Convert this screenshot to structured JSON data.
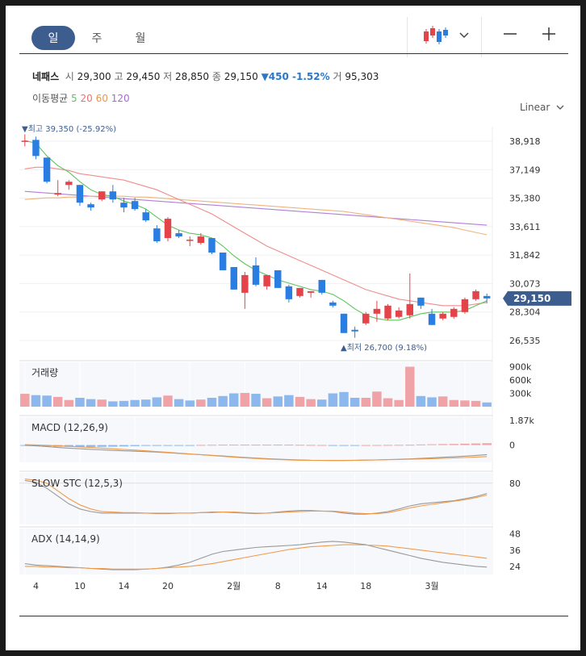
{
  "tabs": [
    "일",
    "주",
    "월"
  ],
  "stock": {
    "name": "네패스",
    "open_label": "시",
    "open": "29,300",
    "high_label": "고",
    "high": "29,450",
    "low_label": "저",
    "low": "28,850",
    "close_label": "종",
    "close": "29,150",
    "change": "▼450 -1.52%",
    "volume_label": "거",
    "volume": "95,303"
  },
  "ma": {
    "label": "이동평균",
    "p5": "5",
    "p20": "20",
    "p60": "60",
    "p120": "120"
  },
  "scale_mode": "Linear",
  "colors": {
    "up": "#e5434a",
    "down": "#2a7de1",
    "ma5": "#5cc65c",
    "ma20": "#ef8d8d",
    "ma60": "#f0b37e",
    "ma120": "#b07fd6",
    "current_tag": "#3d5d8f"
  },
  "chart_data": {
    "type": "candlestick",
    "price_ticks": [
      "38,918",
      "37,149",
      "35,380",
      "33,611",
      "31,842",
      "30,073",
      "28,304",
      "26,535"
    ],
    "price_range": [
      26535,
      38918
    ],
    "current_price": "29,150",
    "max_note": "▼최고 39,350 (-25.92%)",
    "min_note": "▲최저 26,700 (9.18%)",
    "x_ticks": [
      {
        "label": "4",
        "i": 1
      },
      {
        "label": "10",
        "i": 5
      },
      {
        "label": "14",
        "i": 9
      },
      {
        "label": "20",
        "i": 13
      },
      {
        "label": "2월",
        "i": 19
      },
      {
        "label": "8",
        "i": 23
      },
      {
        "label": "14",
        "i": 27
      },
      {
        "label": "18",
        "i": 31
      },
      {
        "label": "3월",
        "i": 37
      }
    ],
    "candles": [
      {
        "o": 38900,
        "h": 39350,
        "l": 38600,
        "c": 38950
      },
      {
        "o": 39000,
        "h": 39200,
        "l": 37800,
        "c": 38000
      },
      {
        "o": 37900,
        "h": 37900,
        "l": 36300,
        "c": 36400
      },
      {
        "o": 35600,
        "h": 36500,
        "l": 35500,
        "c": 35700
      },
      {
        "o": 36200,
        "h": 36500,
        "l": 35900,
        "c": 36400
      },
      {
        "o": 36200,
        "h": 36200,
        "l": 34900,
        "c": 35100
      },
      {
        "o": 35000,
        "h": 35100,
        "l": 34600,
        "c": 34800
      },
      {
        "o": 35300,
        "h": 35800,
        "l": 35200,
        "c": 35800
      },
      {
        "o": 35800,
        "h": 36200,
        "l": 35100,
        "c": 35300
      },
      {
        "o": 35100,
        "h": 35400,
        "l": 34500,
        "c": 34800
      },
      {
        "o": 35200,
        "h": 35400,
        "l": 34600,
        "c": 34700
      },
      {
        "o": 34500,
        "h": 34700,
        "l": 33900,
        "c": 34000
      },
      {
        "o": 33500,
        "h": 33700,
        "l": 32600,
        "c": 32700
      },
      {
        "o": 32900,
        "h": 34200,
        "l": 32700,
        "c": 34100
      },
      {
        "o": 33200,
        "h": 33400,
        "l": 32900,
        "c": 33000
      },
      {
        "o": 32800,
        "h": 33000,
        "l": 32400,
        "c": 32800
      },
      {
        "o": 32600,
        "h": 33200,
        "l": 32500,
        "c": 33000
      },
      {
        "o": 32900,
        "h": 32900,
        "l": 31900,
        "c": 32000
      },
      {
        "o": 32000,
        "h": 32000,
        "l": 30900,
        "c": 30900
      },
      {
        "o": 31100,
        "h": 31100,
        "l": 29700,
        "c": 29700
      },
      {
        "o": 29500,
        "h": 30800,
        "l": 28500,
        "c": 30600
      },
      {
        "o": 31200,
        "h": 31700,
        "l": 29900,
        "c": 30000
      },
      {
        "o": 29900,
        "h": 30600,
        "l": 29700,
        "c": 30600
      },
      {
        "o": 30900,
        "h": 30900,
        "l": 29800,
        "c": 29800
      },
      {
        "o": 29900,
        "h": 30000,
        "l": 28900,
        "c": 29100
      },
      {
        "o": 29300,
        "h": 29800,
        "l": 29200,
        "c": 29800
      },
      {
        "o": 29500,
        "h": 29600,
        "l": 29200,
        "c": 29600
      },
      {
        "o": 30300,
        "h": 30300,
        "l": 29400,
        "c": 29500
      },
      {
        "o": 28900,
        "h": 29000,
        "l": 28600,
        "c": 28700
      },
      {
        "o": 28200,
        "h": 28200,
        "l": 27000,
        "c": 27000
      },
      {
        "o": 27200,
        "h": 27400,
        "l": 26700,
        "c": 27100
      },
      {
        "o": 27600,
        "h": 28300,
        "l": 27500,
        "c": 28200
      },
      {
        "o": 28200,
        "h": 29000,
        "l": 27700,
        "c": 28500
      },
      {
        "o": 27900,
        "h": 28800,
        "l": 27800,
        "c": 28700
      },
      {
        "o": 28000,
        "h": 28600,
        "l": 27900,
        "c": 28400
      },
      {
        "o": 28100,
        "h": 30700,
        "l": 27900,
        "c": 28800
      },
      {
        "o": 29200,
        "h": 29200,
        "l": 28500,
        "c": 28700
      },
      {
        "o": 28200,
        "h": 28500,
        "l": 27500,
        "c": 27500
      },
      {
        "o": 27900,
        "h": 28300,
        "l": 27800,
        "c": 28200
      },
      {
        "o": 28000,
        "h": 28600,
        "l": 27900,
        "c": 28500
      },
      {
        "o": 28300,
        "h": 29200,
        "l": 28200,
        "c": 29100
      },
      {
        "o": 29100,
        "h": 29700,
        "l": 29000,
        "c": 29600
      },
      {
        "o": 29300,
        "h": 29450,
        "l": 28850,
        "c": 29150
      }
    ],
    "ma5": [
      38950,
      38800,
      38000,
      37400,
      37000,
      36400,
      35900,
      35600,
      35500,
      35200,
      35000,
      34700,
      34200,
      33700,
      33400,
      33200,
      33100,
      32900,
      32400,
      31800,
      31300,
      30900,
      30600,
      30300,
      30100,
      29900,
      29700,
      29600,
      29400,
      29000,
      28500,
      28100,
      27900,
      27800,
      27800,
      28000,
      28200,
      28300,
      28300,
      28300,
      28400,
      28700,
      29000
    ],
    "ma20": [
      37200,
      37300,
      37300,
      37200,
      37100,
      36900,
      36800,
      36700,
      36600,
      36500,
      36300,
      36100,
      35900,
      35600,
      35300,
      35000,
      34700,
      34400,
      34000,
      33600,
      33200,
      32800,
      32400,
      32100,
      31800,
      31500,
      31200,
      30900,
      30600,
      30300,
      30000,
      29700,
      29500,
      29300,
      29100,
      29000,
      28900,
      28800,
      28700,
      28700,
      28700,
      28800,
      28900
    ],
    "ma60": [
      35300,
      35350,
      35400,
      35400,
      35450,
      35450,
      35500,
      35500,
      35500,
      35500,
      35450,
      35450,
      35400,
      35350,
      35300,
      35250,
      35200,
      35150,
      35100,
      35050,
      35000,
      34950,
      34900,
      34850,
      34800,
      34750,
      34700,
      34650,
      34600,
      34550,
      34450,
      34350,
      34250,
      34150,
      34050,
      33950,
      33850,
      33750,
      33650,
      33550,
      33400,
      33250,
      33100
    ],
    "ma120": [
      35800,
      35750,
      35700,
      35650,
      35600,
      35550,
      35500,
      35450,
      35400,
      35350,
      35300,
      35250,
      35200,
      35150,
      35100,
      35050,
      35000,
      34950,
      34900,
      34850,
      34800,
      34750,
      34700,
      34650,
      34600,
      34550,
      34500,
      34450,
      34400,
      34350,
      34300,
      34250,
      34200,
      34150,
      34100,
      34050,
      34000,
      33950,
      33900,
      33850,
      33800,
      33750,
      33700
    ],
    "volume": {
      "label": "거래량",
      "ticks": [
        "900k",
        "600k",
        "300k"
      ],
      "max": 1000000,
      "values": [
        290000,
        260000,
        250000,
        220000,
        150000,
        200000,
        170000,
        160000,
        120000,
        130000,
        150000,
        160000,
        210000,
        250000,
        170000,
        140000,
        160000,
        200000,
        240000,
        300000,
        310000,
        290000,
        190000,
        230000,
        260000,
        220000,
        170000,
        160000,
        300000,
        330000,
        200000,
        200000,
        340000,
        190000,
        150000,
        900000,
        240000,
        210000,
        230000,
        150000,
        140000,
        130000,
        95303
      ],
      "up": [
        true,
        false,
        false,
        true,
        true,
        false,
        false,
        true,
        false,
        false,
        false,
        false,
        false,
        true,
        false,
        false,
        true,
        false,
        false,
        false,
        true,
        false,
        true,
        false,
        false,
        true,
        true,
        false,
        false,
        false,
        false,
        true,
        true,
        true,
        true,
        true,
        false,
        false,
        true,
        true,
        true,
        true,
        false
      ]
    },
    "macd": {
      "label": "MACD (12,26,9)",
      "ticks": [
        "1.87k",
        "0"
      ],
      "range": [
        -1300,
        2100
      ],
      "macd": [
        -20,
        -60,
        -110,
        -180,
        -230,
        -280,
        -320,
        -360,
        -400,
        -430,
        -460,
        -490,
        -530,
        -580,
        -630,
        -680,
        -720,
        -770,
        -820,
        -880,
        -930,
        -980,
        -1020,
        -1060,
        -1090,
        -1120,
        -1140,
        -1150,
        -1160,
        -1160,
        -1150,
        -1130,
        -1110,
        -1090,
        -1070,
        -1040,
        -1000,
        -960,
        -920,
        -880,
        -830,
        -780,
        -720
      ],
      "signal": [
        30,
        10,
        -20,
        -60,
        -100,
        -140,
        -180,
        -230,
        -280,
        -330,
        -380,
        -430,
        -490,
        -550,
        -610,
        -670,
        -730,
        -790,
        -850,
        -910,
        -960,
        -1010,
        -1050,
        -1090,
        -1120,
        -1140,
        -1150,
        -1155,
        -1155,
        -1150,
        -1140,
        -1130,
        -1115,
        -1100,
        -1085,
        -1065,
        -1045,
        -1020,
        -995,
        -965,
        -935,
        -900,
        -860
      ],
      "hist": [
        -50,
        -70,
        -90,
        -120,
        -130,
        -140,
        -140,
        -130,
        -120,
        -100,
        -80,
        -60,
        -40,
        -30,
        -20,
        -10,
        10,
        20,
        30,
        30,
        30,
        30,
        30,
        30,
        30,
        20,
        10,
        5,
        -5,
        -10,
        -10,
        0,
        5,
        10,
        15,
        25,
        45,
        60,
        75,
        85,
        105,
        120,
        140
      ]
    },
    "slow_stc": {
      "label": "SLOW STC (12,5,3)",
      "ticks": [
        "80"
      ],
      "range": [
        0,
        100
      ],
      "k": [
        85,
        82,
        70,
        55,
        40,
        30,
        25,
        22,
        22,
        22,
        22,
        22,
        21,
        21,
        22,
        22,
        23,
        24,
        24,
        23,
        22,
        21,
        22,
        24,
        26,
        27,
        27,
        26,
        25,
        22,
        20,
        20,
        22,
        25,
        30,
        36,
        40,
        42,
        44,
        46,
        50,
        54,
        60
      ],
      "d": [
        88,
        86,
        80,
        65,
        50,
        38,
        30,
        25,
        24,
        23,
        23,
        22,
        22,
        22,
        22,
        22,
        23,
        23,
        24,
        24,
        23,
        22,
        22,
        23,
        24,
        25,
        26,
        26,
        26,
        24,
        22,
        21,
        21,
        23,
        27,
        32,
        36,
        39,
        42,
        45,
        48,
        52,
        57
      ]
    },
    "adx": {
      "label": "ADX (14,14,9)",
      "ticks": [
        "48",
        "36",
        "24"
      ],
      "range": [
        18,
        52
      ],
      "adx": [
        26,
        25,
        24.5,
        24,
        23.5,
        23,
        22.5,
        22,
        21.5,
        21.5,
        21.5,
        22,
        22.5,
        23.5,
        25,
        27,
        30,
        33,
        35,
        36,
        37,
        38,
        38.5,
        39,
        39.5,
        40,
        41,
        42,
        42.5,
        42,
        41,
        40,
        38,
        36,
        34,
        32,
        30,
        28.5,
        27,
        26,
        25,
        24,
        23.5
      ],
      "signal": [
        24,
        24,
        23.5,
        23.5,
        23,
        23,
        22.5,
        22.5,
        22,
        22,
        22,
        22,
        22.5,
        23,
        23.5,
        24,
        25,
        26,
        27.5,
        29,
        30.5,
        32,
        33.5,
        35,
        36.5,
        37.5,
        38.5,
        39,
        39.5,
        40,
        40,
        39.8,
        39.5,
        39,
        38,
        37,
        36,
        35,
        34,
        33,
        32,
        31,
        30
      ]
    }
  }
}
